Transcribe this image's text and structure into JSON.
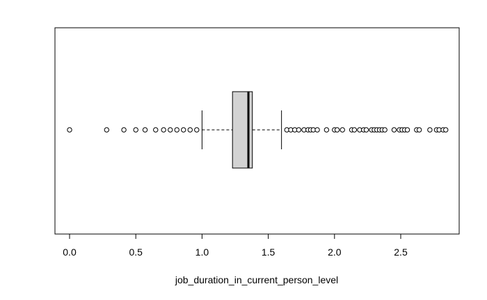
{
  "chart_data": {
    "type": "boxplot",
    "orientation": "horizontal",
    "title": "",
    "xlabel": "job_duration_in_current_person_level",
    "ylabel": "",
    "xlim": [
      -0.12,
      2.95
    ],
    "ticks": [
      0.0,
      0.5,
      1.0,
      1.5,
      2.0,
      2.5
    ],
    "tick_labels": [
      "0.0",
      "0.5",
      "1.0",
      "1.5",
      "2.0",
      "2.5"
    ],
    "box": {
      "whisker_low": 1.0,
      "q1": 1.23,
      "median": 1.35,
      "q3": 1.38,
      "whisker_high": 1.6
    },
    "outliers": [
      0.0,
      0.28,
      0.41,
      0.5,
      0.57,
      0.65,
      0.71,
      0.76,
      0.81,
      0.86,
      0.91,
      0.96,
      1.64,
      1.67,
      1.7,
      1.73,
      1.77,
      1.8,
      1.82,
      1.84,
      1.87,
      1.94,
      2.0,
      2.02,
      2.06,
      2.13,
      2.15,
      2.19,
      2.22,
      2.24,
      2.28,
      2.3,
      2.32,
      2.34,
      2.36,
      2.38,
      2.45,
      2.49,
      2.51,
      2.53,
      2.55,
      2.62,
      2.64,
      2.72,
      2.77,
      2.79,
      2.82,
      2.84
    ],
    "colors": {
      "box_fill": "#d3d3d3",
      "stroke": "#000000",
      "background": "#ffffff"
    }
  }
}
